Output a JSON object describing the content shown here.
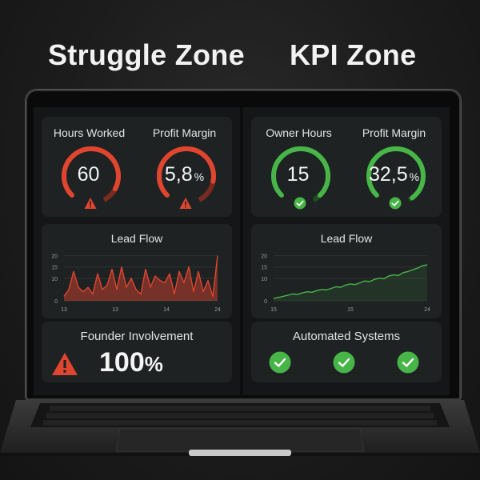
{
  "zones": {
    "left_title": "Struggle Zone",
    "right_title": "KPI Zone"
  },
  "colors": {
    "danger": "#e0452f",
    "success": "#47b548",
    "card": "#1f2223"
  },
  "struggle": {
    "metrics": [
      {
        "label": "Hours Worked",
        "value": "60",
        "unit": "",
        "icon": "warning-icon"
      },
      {
        "label": "Profit Margin",
        "value": "5,8",
        "unit": "%",
        "icon": "warning-icon"
      }
    ],
    "lead_flow": {
      "title": "Lead Flow"
    },
    "founder": {
      "title": "Founder Involvement",
      "value": "100",
      "unit": "%",
      "icon": "warning-icon"
    }
  },
  "kpi": {
    "metrics": [
      {
        "label": "Owner Hours",
        "value": "15",
        "unit": "",
        "icon": "check-icon"
      },
      {
        "label": "Profit Margin",
        "value": "32,5",
        "unit": "%",
        "icon": "check-icon"
      }
    ],
    "lead_flow": {
      "title": "Lead Flow"
    },
    "automated": {
      "title": "Automated Systems",
      "checks": [
        "check-icon",
        "check-icon",
        "check-icon"
      ]
    }
  },
  "chart_data": [
    {
      "type": "area",
      "title": "Lead Flow",
      "x_ticks": [
        "13",
        "13",
        "14",
        "24"
      ],
      "y_ticks": [
        0,
        10,
        15,
        20
      ],
      "ylim": [
        0,
        22
      ],
      "values": [
        2,
        5,
        13,
        6,
        4,
        6,
        3,
        12,
        5,
        7,
        14,
        5,
        15,
        6,
        10,
        5,
        3,
        14,
        6,
        11,
        9,
        8,
        12,
        3,
        13,
        8,
        15,
        4,
        13,
        4,
        9,
        2,
        20
      ]
    },
    {
      "type": "line",
      "title": "Lead Flow",
      "x_ticks": [
        "15",
        "15",
        "24"
      ],
      "y_ticks": [
        0,
        10,
        15,
        20
      ],
      "ylim": [
        0,
        22
      ],
      "values": [
        1,
        1.5,
        2,
        2.5,
        3,
        2.8,
        3.5,
        4,
        3.8,
        4.5,
        5,
        4.8,
        5.5,
        6.2,
        6,
        7,
        7.5,
        7.2,
        8,
        8.8,
        8.5,
        9.5,
        10,
        9.8,
        11,
        11.5,
        11.2,
        12.5,
        13,
        13.8,
        14.5,
        15.5,
        16
      ]
    }
  ]
}
